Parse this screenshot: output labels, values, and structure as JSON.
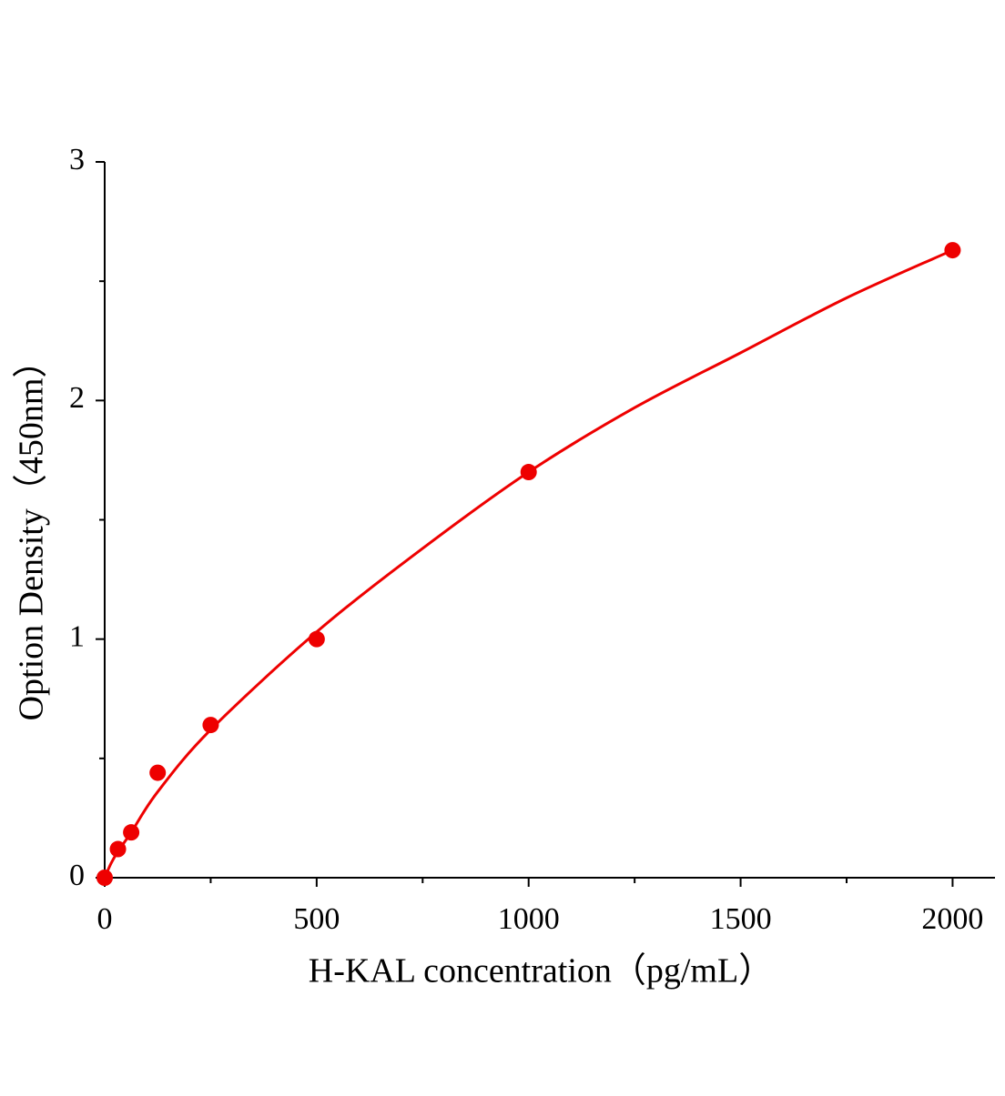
{
  "chart_data": {
    "type": "scatter",
    "x_label": "H-KAL concentration（pg/mL）",
    "y_label": "Option Density（450nm）",
    "series": [
      {
        "color": "#ee0000",
        "x": [
          0,
          31.25,
          62.5,
          125,
          250,
          500,
          1000,
          2000
        ],
        "values": [
          0,
          0.12,
          0.19,
          0.44,
          0.64,
          1.0,
          1.7,
          2.63
        ]
      }
    ],
    "fit": {
      "color": "#ee0000",
      "x": [
        0,
        15,
        31.25,
        62.5,
        125,
        250,
        500,
        750,
        1000,
        1250,
        1500,
        1750,
        2000
      ],
      "values": [
        0,
        0.06,
        0.11,
        0.19,
        0.36,
        0.62,
        1.03,
        1.38,
        1.7,
        1.97,
        2.2,
        2.43,
        2.63
      ]
    },
    "xlim": [
      0,
      2100
    ],
    "xticks": [
      0,
      500,
      1000,
      1500,
      2000
    ],
    "xminorticks": [
      250,
      750,
      1250,
      1750
    ],
    "ylim": [
      0,
      3
    ],
    "yticks": [
      0,
      1,
      2,
      3
    ],
    "yminorticks": [
      0.5,
      1.5,
      2.5
    ],
    "grid": false
  }
}
